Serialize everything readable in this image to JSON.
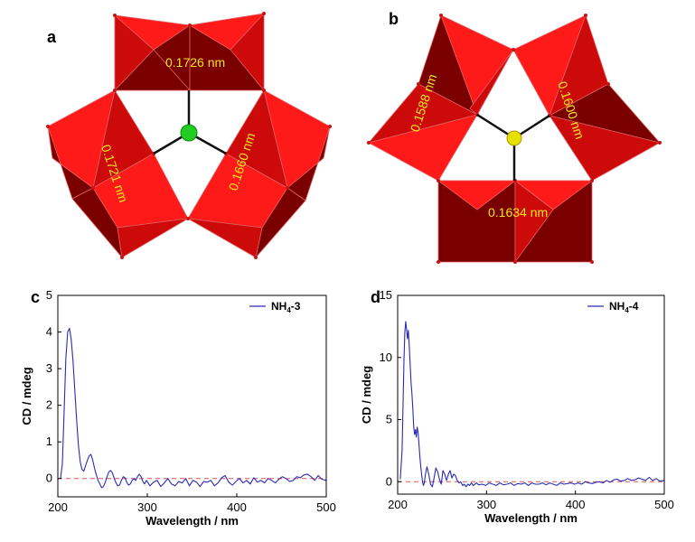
{
  "figure": {
    "panels": {
      "a": {
        "label": "a",
        "bonds": [
          "0.1726 nm",
          "0.1721 nm",
          "0.1660 nm"
        ],
        "center_color": "#22cc22"
      },
      "b": {
        "label": "b",
        "bonds": [
          "0.1588 nm",
          "0.1600 nm",
          "0.1634 nm"
        ],
        "center_color": "#e8e000"
      },
      "c": {
        "label": "c"
      },
      "d": {
        "label": "d"
      }
    },
    "colors": {
      "poly_light": "#ff1a1a",
      "poly_mid": "#cc0a0a",
      "poly_dark": "#7a0000",
      "edge": "#e06060",
      "line": "#2b2bb5",
      "baseline": "#e05050"
    }
  },
  "chart_data": [
    {
      "type": "line",
      "panel": "c",
      "xlabel": "Wavelength / nm",
      "ylabel": "CD / mdeg",
      "xlim": [
        200,
        500
      ],
      "ylim": [
        -0.5,
        5
      ],
      "xticks": [
        200,
        300,
        400,
        500
      ],
      "yticks": [
        0,
        1,
        2,
        3,
        4,
        5
      ],
      "legend_position": "top-right",
      "baseline": 0,
      "series": [
        {
          "name": "NH4-3",
          "name_main": "NH",
          "name_sub": "4",
          "name_suffix": "-3",
          "x": [
            203,
            205,
            207,
            209,
            211,
            213,
            215,
            217,
            219,
            221,
            223,
            225,
            227,
            229,
            231,
            233,
            235,
            237,
            239,
            241,
            243,
            245,
            247,
            249,
            251,
            253,
            255,
            257,
            259,
            261,
            263,
            265,
            267,
            269,
            271,
            273,
            275,
            277,
            279,
            281,
            283,
            285,
            287,
            289,
            291,
            293,
            295,
            297,
            299,
            303,
            307,
            311,
            315,
            319,
            323,
            327,
            331,
            335,
            339,
            343,
            347,
            351,
            355,
            359,
            363,
            367,
            371,
            375,
            379,
            383,
            387,
            391,
            395,
            399,
            403,
            407,
            411,
            415,
            419,
            423,
            427,
            431,
            435,
            439,
            443,
            447,
            451,
            455,
            459,
            463,
            467,
            471,
            475,
            479,
            483,
            487,
            491,
            495,
            500
          ],
          "y": [
            0.0,
            0.4,
            1.8,
            3.3,
            4.0,
            4.1,
            3.8,
            3.2,
            2.4,
            1.6,
            0.9,
            0.45,
            0.25,
            0.2,
            0.35,
            0.5,
            0.62,
            0.66,
            0.5,
            0.28,
            0.1,
            -0.05,
            -0.15,
            -0.25,
            -0.22,
            -0.1,
            0.05,
            0.18,
            0.22,
            0.15,
            0.0,
            -0.12,
            -0.2,
            -0.18,
            -0.05,
            0.05,
            0.02,
            -0.1,
            -0.18,
            -0.15,
            -0.05,
            0.0,
            -0.05,
            0.05,
            0.12,
            0.05,
            -0.08,
            -0.15,
            -0.05,
            -0.2,
            -0.1,
            -0.05,
            -0.22,
            -0.12,
            0.0,
            -0.15,
            -0.2,
            -0.08,
            -0.12,
            0.0,
            -0.2,
            -0.05,
            -0.1,
            -0.22,
            -0.08,
            -0.1,
            -0.05,
            -0.2,
            -0.12,
            0.02,
            0.08,
            -0.1,
            -0.18,
            -0.08,
            0.0,
            -0.12,
            -0.05,
            -0.15,
            0.02,
            -0.1,
            -0.05,
            -0.12,
            0.0,
            -0.05,
            -0.12,
            -0.02,
            0.05,
            0.0,
            -0.08,
            -0.05,
            0.05,
            0.02,
            0.1,
            0.12,
            0.05,
            -0.05,
            0.08,
            -0.02,
            -0.05
          ]
        }
      ]
    },
    {
      "type": "line",
      "panel": "d",
      "xlabel": "Wavelength / nm",
      "ylabel": "CD / mdeg",
      "xlim": [
        200,
        500
      ],
      "ylim": [
        -1,
        15
      ],
      "xticks": [
        200,
        300,
        400,
        500
      ],
      "yticks": [
        0,
        5,
        10,
        15
      ],
      "legend_position": "top-right",
      "baseline": 0,
      "series": [
        {
          "name": "NH4-4",
          "name_main": "NH",
          "name_sub": "4",
          "name_suffix": "-4",
          "x": [
            203,
            205,
            206,
            207,
            208,
            209,
            210,
            211,
            212,
            213,
            214,
            215,
            216,
            217,
            218,
            219,
            220,
            221,
            222,
            223,
            224,
            225,
            226,
            227,
            228,
            229,
            230,
            231,
            233,
            235,
            237,
            239,
            241,
            243,
            245,
            247,
            249,
            251,
            253,
            255,
            257,
            259,
            261,
            263,
            265,
            267,
            269,
            271,
            273,
            275,
            277,
            279,
            281,
            283,
            285,
            287,
            289,
            291,
            295,
            299,
            303,
            307,
            311,
            315,
            319,
            323,
            327,
            331,
            335,
            339,
            343,
            347,
            351,
            355,
            359,
            363,
            367,
            371,
            375,
            379,
            383,
            387,
            391,
            395,
            399,
            403,
            407,
            411,
            415,
            419,
            423,
            427,
            431,
            435,
            439,
            443,
            447,
            451,
            455,
            459,
            463,
            467,
            471,
            475,
            479,
            483,
            487,
            491,
            495,
            500
          ],
          "y": [
            0.2,
            2.5,
            6.0,
            9.5,
            12.0,
            12.9,
            12.3,
            11.5,
            12.2,
            11.0,
            9.5,
            8.0,
            7.2,
            6.0,
            4.5,
            3.8,
            4.2,
            3.6,
            4.4,
            4.0,
            3.0,
            2.0,
            1.2,
            0.5,
            0.0,
            -0.3,
            -0.1,
            0.5,
            1.2,
            0.6,
            -0.2,
            -0.4,
            0.3,
            1.1,
            0.8,
            0.2,
            -0.2,
            0.9,
            0.6,
            0.1,
            0.6,
            0.9,
            0.3,
            0.6,
            0.5,
            0.1,
            -0.1,
            0.0,
            -0.3,
            -0.2,
            -0.4,
            -0.2,
            -0.3,
            -0.1,
            -0.3,
            -0.2,
            -0.1,
            -0.25,
            -0.2,
            -0.3,
            -0.1,
            -0.2,
            -0.3,
            -0.1,
            -0.25,
            -0.2,
            -0.1,
            -0.3,
            -0.15,
            -0.2,
            -0.1,
            -0.3,
            -0.1,
            -0.2,
            -0.2,
            -0.1,
            -0.25,
            -0.1,
            -0.2,
            -0.3,
            -0.1,
            -0.2,
            -0.15,
            -0.1,
            -0.2,
            -0.1,
            -0.2,
            0.0,
            -0.1,
            -0.15,
            -0.05,
            0.0,
            -0.1,
            0.1,
            -0.05,
            0.15,
            0.2,
            0.05,
            0.1,
            0.25,
            0.1,
            0.15,
            0.3,
            0.2,
            0.1,
            0.35,
            0.1,
            0.25,
            0.05,
            0.1
          ]
        }
      ]
    }
  ]
}
